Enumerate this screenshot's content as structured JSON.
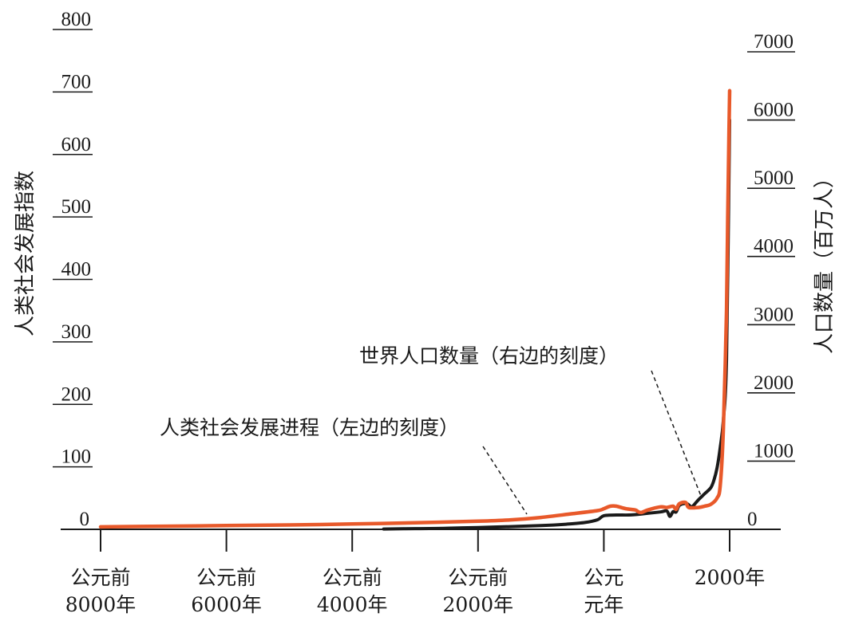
{
  "chart_data": {
    "type": "line",
    "left_axis": {
      "label": "人类社会发展指数",
      "ticks": [
        0,
        100,
        200,
        300,
        400,
        500,
        600,
        700,
        800
      ],
      "range": [
        0,
        800
      ]
    },
    "right_axis": {
      "label": "人口数量（百万人）",
      "ticks": [
        0,
        1000,
        2000,
        3000,
        4000,
        5000,
        6000,
        7000
      ],
      "range": [
        0,
        7000
      ]
    },
    "x_axis": {
      "ticks": [
        {
          "year": -8000,
          "lines": [
            "公元前",
            "8000年"
          ]
        },
        {
          "year": -6000,
          "lines": [
            "公元前",
            "6000年"
          ]
        },
        {
          "year": -4000,
          "lines": [
            "公元前",
            "4000年"
          ]
        },
        {
          "year": -2000,
          "lines": [
            "公元前",
            "2000年"
          ]
        },
        {
          "year": 0,
          "lines": [
            "公元",
            "元年"
          ]
        },
        {
          "year": 2000,
          "lines": [
            "2000年"
          ]
        }
      ],
      "range": [
        -8000,
        2000
      ]
    },
    "series": [
      {
        "name": "人类社会发展进程（左边的刻度）",
        "axis": "left",
        "color": "#e8592a",
        "points": [
          [
            -8000,
            4
          ],
          [
            -7000,
            5
          ],
          [
            -6000,
            6
          ],
          [
            -5000,
            7
          ],
          [
            -4000,
            8.5
          ],
          [
            -3000,
            10.5
          ],
          [
            -2000,
            13
          ],
          [
            -1500,
            15
          ],
          [
            -1000,
            19
          ],
          [
            -500,
            25
          ],
          [
            -100,
            30
          ],
          [
            0,
            33
          ],
          [
            100,
            37
          ],
          [
            200,
            37
          ],
          [
            350,
            33
          ],
          [
            500,
            31
          ],
          [
            550,
            28
          ],
          [
            600,
            27
          ],
          [
            700,
            31
          ],
          [
            900,
            36
          ],
          [
            1000,
            35
          ],
          [
            1100,
            37
          ],
          [
            1150,
            32
          ],
          [
            1200,
            41
          ],
          [
            1300,
            43
          ],
          [
            1350,
            35
          ],
          [
            1500,
            35
          ],
          [
            1600,
            37
          ],
          [
            1700,
            40
          ],
          [
            1800,
            50
          ],
          [
            1850,
            70
          ],
          [
            1900,
            160
          ],
          [
            1950,
            350
          ],
          [
            1970,
            500
          ],
          [
            1990,
            640
          ],
          [
            2000,
            702
          ]
        ]
      },
      {
        "name": "世界人口数量（右边的刻度）",
        "axis": "right",
        "color": "#1a1a1a",
        "points": [
          [
            -3500,
            5
          ],
          [
            -3000,
            10
          ],
          [
            -2500,
            16
          ],
          [
            -2000,
            27
          ],
          [
            -1500,
            40
          ],
          [
            -1000,
            55
          ],
          [
            -600,
            75
          ],
          [
            -300,
            100
          ],
          [
            -100,
            140
          ],
          [
            0,
            200
          ],
          [
            200,
            210
          ],
          [
            400,
            210
          ],
          [
            600,
            225
          ],
          [
            900,
            255
          ],
          [
            1000,
            270
          ],
          [
            1050,
            190
          ],
          [
            1100,
            260
          ],
          [
            1150,
            255
          ],
          [
            1200,
            350
          ],
          [
            1300,
            380
          ],
          [
            1350,
            360
          ],
          [
            1400,
            330
          ],
          [
            1500,
            430
          ],
          [
            1600,
            520
          ],
          [
            1700,
            610
          ],
          [
            1750,
            720
          ],
          [
            1800,
            900
          ],
          [
            1850,
            1200
          ],
          [
            1900,
            1600
          ],
          [
            1950,
            2500
          ],
          [
            2000,
            6000
          ]
        ]
      }
    ],
    "grid": false
  }
}
